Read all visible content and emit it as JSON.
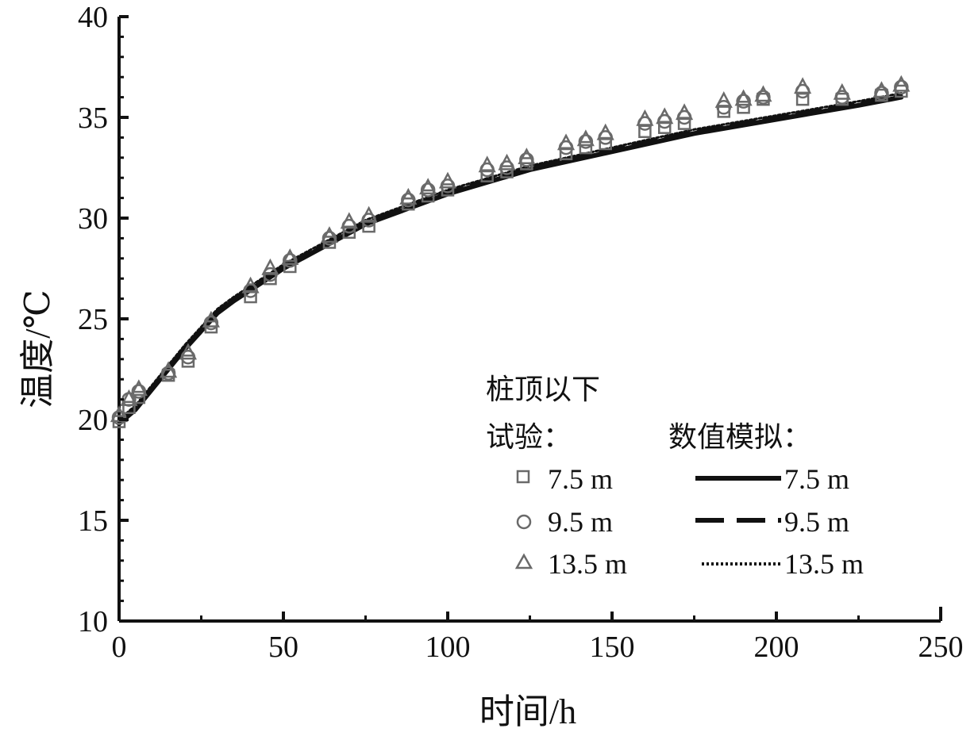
{
  "chart_data": {
    "type": "line",
    "xlabel": "时间/h",
    "ylabel": "温度/℃",
    "xlim": [
      0,
      250
    ],
    "ylim": [
      10,
      40
    ],
    "xticks": [
      0,
      50,
      100,
      150,
      200,
      250
    ],
    "yticks": [
      10,
      15,
      20,
      25,
      30,
      35,
      40
    ],
    "grid": false,
    "legend": {
      "placement": "lower-right",
      "group_title": "桩顶以下",
      "test_title": "试验：",
      "sim_title": "数值模拟：",
      "test_entries": [
        "7.5 m",
        "9.5 m",
        "13.5 m"
      ],
      "sim_entries": [
        "7.5 m",
        "9.5 m",
        "13.5 m"
      ]
    },
    "test_series": [
      {
        "name": "7.5 m",
        "marker": "square",
        "x": [
          0,
          3,
          6,
          15,
          21,
          28,
          40,
          46,
          52,
          64,
          70,
          76,
          88,
          94,
          100,
          112,
          118,
          124,
          136,
          142,
          148,
          160,
          166,
          172,
          184,
          190,
          196,
          208,
          220,
          232,
          238
        ],
        "y": [
          19.9,
          20.6,
          21.1,
          22.2,
          22.9,
          24.6,
          26.1,
          27.0,
          27.6,
          28.8,
          29.3,
          29.6,
          30.7,
          31.1,
          31.4,
          32.1,
          32.3,
          32.7,
          33.2,
          33.5,
          33.7,
          34.3,
          34.5,
          34.7,
          35.3,
          35.5,
          35.9,
          35.9,
          35.9,
          36.1,
          36.3
        ]
      },
      {
        "name": "9.5 m",
        "marker": "circle",
        "x": [
          0,
          3,
          6,
          15,
          21,
          28,
          40,
          46,
          52,
          64,
          70,
          76,
          88,
          94,
          100,
          112,
          118,
          124,
          136,
          142,
          148,
          160,
          166,
          172,
          184,
          190,
          196,
          208,
          220,
          232,
          238
        ],
        "y": [
          20.1,
          21.0,
          21.4,
          22.3,
          23.1,
          24.8,
          26.4,
          27.2,
          27.9,
          29.0,
          29.6,
          29.9,
          30.9,
          31.4,
          31.6,
          32.4,
          32.5,
          32.9,
          33.5,
          33.8,
          34.0,
          34.7,
          34.8,
          35.0,
          35.5,
          35.8,
          36.0,
          36.3,
          36.0,
          36.2,
          36.5
        ]
      },
      {
        "name": "13.5 m",
        "marker": "triangle",
        "x": [
          0,
          3,
          6,
          15,
          21,
          28,
          40,
          46,
          52,
          64,
          70,
          76,
          88,
          94,
          100,
          112,
          118,
          124,
          136,
          142,
          148,
          160,
          166,
          172,
          184,
          190,
          196,
          208,
          220,
          232,
          238
        ],
        "y": [
          20.2,
          21.0,
          21.5,
          22.4,
          23.3,
          24.9,
          26.6,
          27.5,
          28.0,
          29.1,
          29.8,
          30.1,
          31.0,
          31.5,
          31.8,
          32.6,
          32.7,
          33.0,
          33.7,
          33.9,
          34.2,
          34.9,
          35.0,
          35.2,
          35.8,
          35.9,
          36.1,
          36.5,
          36.2,
          36.3,
          36.6
        ]
      }
    ],
    "sim_series": [
      {
        "name": "7.5 m",
        "style": "solid",
        "x": [
          0,
          5,
          10,
          20,
          30,
          35,
          50,
          75,
          100,
          125,
          150,
          175,
          200,
          225,
          238
        ],
        "y": [
          19.8,
          20.5,
          21.5,
          23.5,
          25.3,
          25.9,
          27.5,
          29.7,
          31.2,
          32.4,
          33.3,
          34.2,
          34.9,
          35.6,
          36.0
        ]
      },
      {
        "name": "9.5 m",
        "style": "dashed",
        "x": [
          0,
          5,
          10,
          20,
          30,
          35,
          50,
          75,
          100,
          125,
          150,
          175,
          200,
          225,
          238
        ],
        "y": [
          19.9,
          20.6,
          21.6,
          23.6,
          25.4,
          26.0,
          27.6,
          29.8,
          31.3,
          32.5,
          33.4,
          34.3,
          35.0,
          35.7,
          36.1
        ]
      },
      {
        "name": "13.5 m",
        "style": "dotted",
        "x": [
          0,
          5,
          10,
          20,
          30,
          35,
          50,
          75,
          100,
          125,
          150,
          175,
          200,
          225,
          238
        ],
        "y": [
          20.0,
          20.7,
          21.7,
          23.7,
          25.5,
          26.1,
          27.7,
          29.9,
          31.4,
          32.6,
          33.5,
          34.4,
          35.1,
          35.8,
          36.2
        ]
      }
    ],
    "colors": {
      "axis": "#111111",
      "line": "#111111",
      "marker_stroke": "#6a6a6a"
    }
  }
}
